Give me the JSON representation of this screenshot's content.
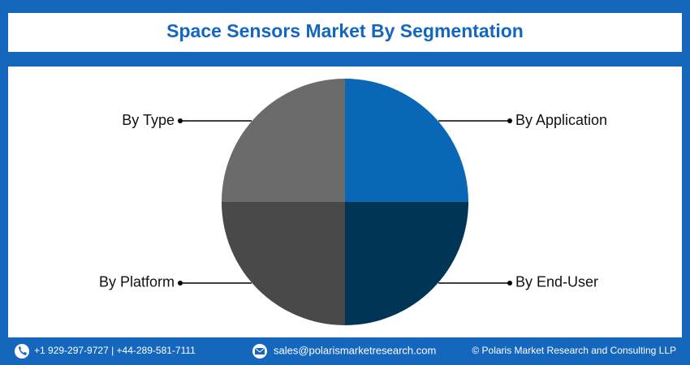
{
  "chart_data": {
    "type": "pie",
    "title": "Space Sensors Market By Segmentation",
    "categories": [
      "By Application",
      "By End-User",
      "By Platform",
      "By Type"
    ],
    "values": [
      25,
      25,
      25,
      25
    ],
    "colors": [
      "#0a67b5",
      "#003556",
      "#494949",
      "#6b6b6b"
    ]
  },
  "footer": {
    "phone": "+1 929-297-9727 | +44-289-581-7111",
    "email": "sales@polarismarketresearch.com",
    "copyright": "© Polaris Market Research and Consulting LLP"
  }
}
